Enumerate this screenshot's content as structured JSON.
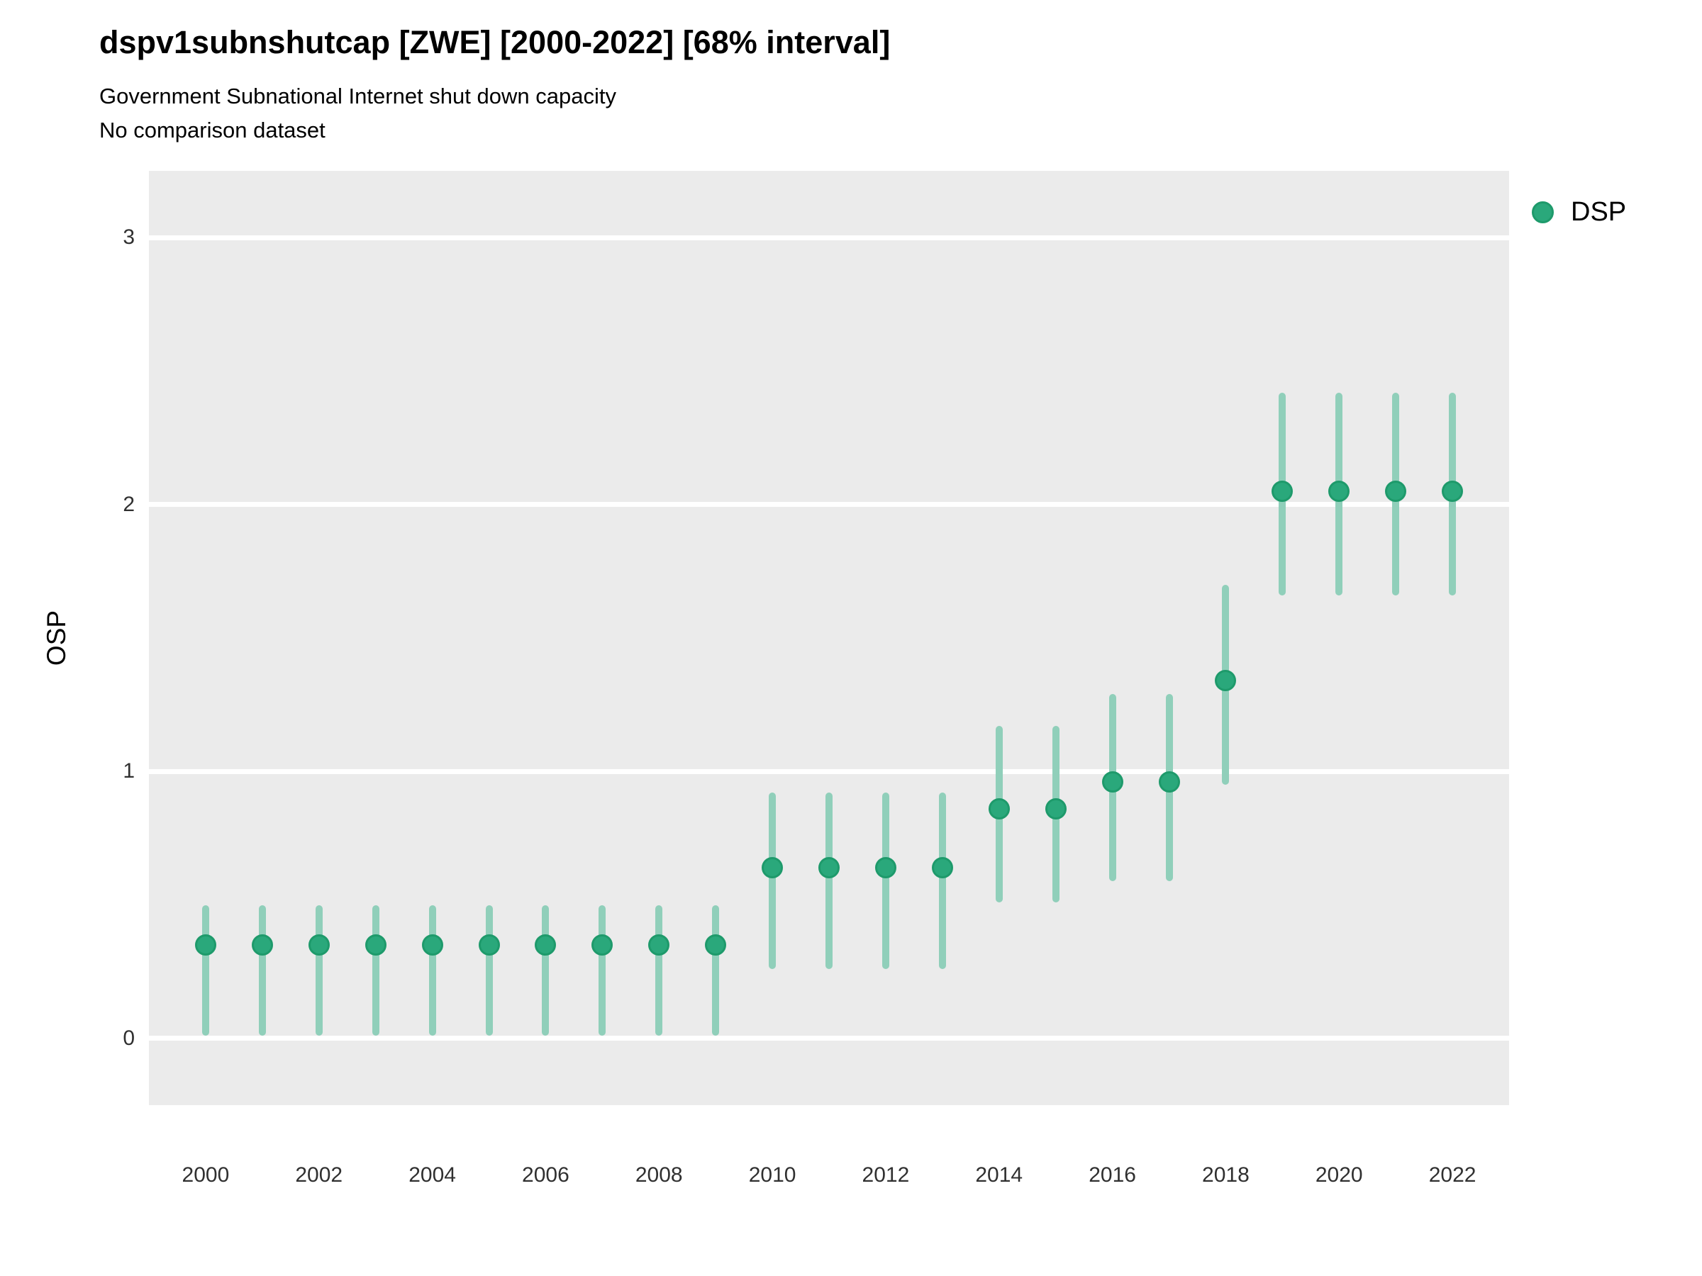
{
  "colors": {
    "background": "#ffffff",
    "panel": "#ebebeb",
    "grid": "#ffffff",
    "tick_text": "#303030",
    "accent_green": "#2aa87b"
  },
  "chart_data": {
    "type": "scatter",
    "title": "dspv1subnshutcap [ZWE] [2000-2022] [68% interval]",
    "subtitle": "Government Subnational Internet shut down capacity",
    "note": "No comparison dataset",
    "xlabel": "",
    "ylabel": "OSP",
    "xlim": [
      1999,
      2023
    ],
    "ylim": [
      -0.25,
      3.25
    ],
    "xticks": [
      2000,
      2002,
      2004,
      2006,
      2008,
      2010,
      2012,
      2014,
      2016,
      2018,
      2020,
      2022
    ],
    "yticks": [
      0,
      1,
      2,
      3
    ],
    "grid": "horizontal-major-only",
    "legend_position": "right",
    "interval": "68%",
    "series": [
      {
        "name": "DSP",
        "point_color": "#2aa87b",
        "point_edge_color": "#1e9a6b",
        "interval_color": "#90cfba",
        "x": [
          2000,
          2001,
          2002,
          2003,
          2004,
          2005,
          2006,
          2007,
          2008,
          2009,
          2010,
          2011,
          2012,
          2013,
          2014,
          2015,
          2016,
          2017,
          2018,
          2019,
          2020,
          2021,
          2022
        ],
        "y": [
          0.35,
          0.35,
          0.35,
          0.35,
          0.35,
          0.35,
          0.35,
          0.35,
          0.35,
          0.35,
          0.64,
          0.64,
          0.64,
          0.64,
          0.86,
          0.86,
          0.96,
          0.96,
          1.34,
          2.05,
          2.05,
          2.05,
          2.05
        ],
        "y_low": [
          0.01,
          0.01,
          0.01,
          0.01,
          0.01,
          0.01,
          0.01,
          0.01,
          0.01,
          0.01,
          0.26,
          0.26,
          0.26,
          0.26,
          0.51,
          0.51,
          0.59,
          0.59,
          0.95,
          1.66,
          1.66,
          1.66,
          1.66
        ],
        "y_high": [
          0.5,
          0.5,
          0.5,
          0.5,
          0.5,
          0.5,
          0.5,
          0.5,
          0.5,
          0.5,
          0.92,
          0.92,
          0.92,
          0.92,
          1.17,
          1.17,
          1.29,
          1.29,
          1.7,
          2.42,
          2.42,
          2.42,
          2.42
        ]
      }
    ]
  }
}
